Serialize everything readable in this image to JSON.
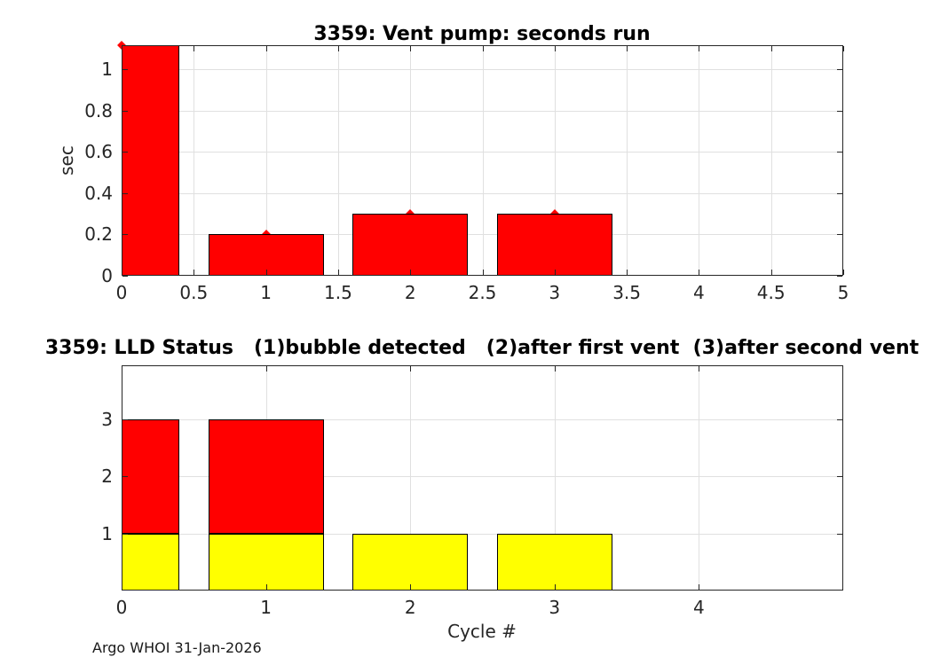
{
  "footer": "Argo WHOI 31-Jan-2026",
  "colors": {
    "bar_red": "#ff0000",
    "bar_yellow": "#ffff00",
    "bar_edge": "#000000",
    "grid": "#e0e0e0",
    "axis": "#262626",
    "marker": "#ff0000"
  },
  "chart_data": [
    {
      "type": "bar",
      "title": "3359: Vent pump: seconds run",
      "xlabel": "",
      "ylabel": "sec",
      "xlim": [
        0,
        5
      ],
      "ylim": [
        0,
        1.117
      ],
      "grid": true,
      "legend": "none",
      "bar_width": 0.8,
      "x": [
        0,
        1,
        2,
        3
      ],
      "series": [
        {
          "name": "vent pump seconds run",
          "color": "#ff0000",
          "values": [
            1.12,
            0.2,
            0.3,
            0.3
          ]
        }
      ],
      "value_clipped_at_axis_top": [
        true,
        false,
        false,
        false
      ],
      "markers": {
        "shape": "point",
        "color": "#ff0000",
        "points": [
          [
            0,
            1.117
          ],
          [
            1,
            0.2
          ],
          [
            2,
            0.3
          ],
          [
            3,
            0.3
          ]
        ]
      },
      "xticks": [
        0,
        0.5,
        1,
        1.5,
        2,
        2.5,
        3,
        3.5,
        4,
        4.5,
        5
      ],
      "xtick_labels": [
        "0",
        "0.5",
        "1",
        "1.5",
        "2",
        "2.5",
        "3",
        "3.5",
        "4",
        "4.5",
        "5"
      ],
      "yticks": [
        0,
        0.2,
        0.4,
        0.6,
        0.8,
        1
      ],
      "ytick_labels": [
        "0",
        "0.2",
        "0.4",
        "0.6",
        "0.8",
        "1"
      ]
    },
    {
      "type": "bar",
      "stacked": true,
      "title": "3359: LLD Status   (1)bubble detected   (2)after first vent  (3)after second vent",
      "xlabel": "Cycle #",
      "ylabel": "",
      "xlim": [
        0,
        5
      ],
      "ylim": [
        0,
        3.95
      ],
      "grid": true,
      "legend": "none",
      "bar_width": 0.8,
      "x": [
        0,
        1,
        2,
        3
      ],
      "series": [
        {
          "name": "status level 1 (bubble detected)",
          "color": "#ffff00",
          "values": [
            1,
            1,
            1,
            1
          ]
        },
        {
          "name": "status levels 2-3 (after first/second vent)",
          "color": "#ff0000",
          "values": [
            2,
            2,
            0,
            0
          ]
        }
      ],
      "xticks": [
        0,
        1,
        2,
        3,
        4
      ],
      "xtick_labels": [
        "0",
        "1",
        "2",
        "3",
        "4"
      ],
      "yticks": [
        1,
        2,
        3
      ],
      "ytick_labels": [
        "1",
        "2",
        "3"
      ]
    }
  ]
}
